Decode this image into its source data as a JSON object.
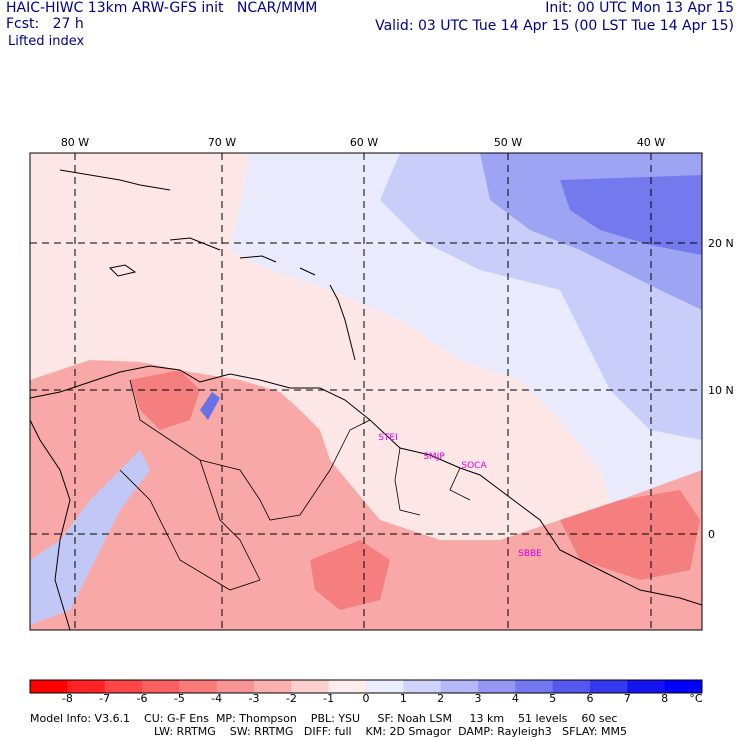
{
  "header": {
    "model_title": "HAIC-HIWC 13km ARW-GFS init   NCAR/MMM",
    "fcst_label": "Fcst:",
    "fcst_value": "27 h",
    "field_name": "Lifted index",
    "init": "Init: 00 UTC Mon 13 Apr 15",
    "valid": "Valid: 03 UTC Tue 14 Apr 15 (00 LST Tue 14 Apr 15)"
  },
  "map": {
    "lon_labels": [
      "80 W",
      "70 W",
      "60 W",
      "50 W",
      "40 W"
    ],
    "lat_labels": [
      "20 N",
      "10 N",
      "0"
    ],
    "stations": [
      "STEI",
      "SMJP",
      "SOCA",
      "SBBE"
    ]
  },
  "colorbar": {
    "labels": [
      "-8",
      "-7",
      "-6",
      "-5",
      "-4",
      "-3",
      "-2",
      "-1",
      "0",
      "1",
      "2",
      "3",
      "4",
      "5",
      "6",
      "7",
      "8",
      "°C"
    ],
    "colors": [
      "#ff0000",
      "#ff2222",
      "#ff4646",
      "#fb6060",
      "#fa7a7a",
      "#f99494",
      "#fbb0b0",
      "#fdd0d0",
      "#ffecec",
      "#ececff",
      "#d0d4fb",
      "#b4b8f8",
      "#9498f4",
      "#7478f0",
      "#5458ee",
      "#3438ee",
      "#1414f0",
      "#0000ff"
    ]
  },
  "footer": {
    "line1": "Model Info: V3.6.1    CU: G-F Ens  MP: Thompson    PBL: YSU     SF: Noah LSM     13 km    51 levels    60 sec",
    "line2": "LW: RRTMG    SW: RRTMG   DIFF: full    KM: 2D Smagor  DAMP: Rayleigh3   SFLAY: MM5"
  }
}
